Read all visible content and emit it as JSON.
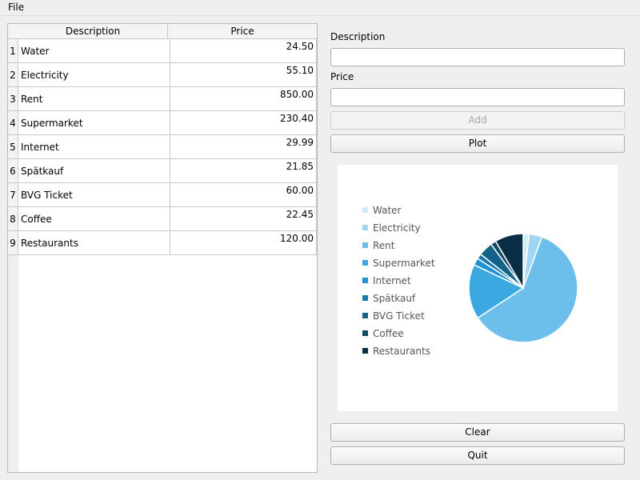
{
  "menu": {
    "file": "File"
  },
  "table": {
    "headers": [
      "Description",
      "Price"
    ],
    "rows": [
      {
        "n": "1",
        "description": "Water",
        "price": "24.50"
      },
      {
        "n": "2",
        "description": "Electricity",
        "price": "55.10"
      },
      {
        "n": "3",
        "description": "Rent",
        "price": "850.00"
      },
      {
        "n": "4",
        "description": "Supermarket",
        "price": "230.40"
      },
      {
        "n": "5",
        "description": "Internet",
        "price": "29.99"
      },
      {
        "n": "6",
        "description": "Spätkauf",
        "price": "21.85"
      },
      {
        "n": "7",
        "description": "BVG Ticket",
        "price": "60.00"
      },
      {
        "n": "8",
        "description": "Coffee",
        "price": "22.45"
      },
      {
        "n": "9",
        "description": "Restaurants",
        "price": "120.00"
      }
    ]
  },
  "form": {
    "description_label": "Description",
    "description_value": "",
    "price_label": "Price",
    "price_value": "",
    "add": "Add",
    "plot": "Plot",
    "clear": "Clear",
    "quit": "Quit"
  },
  "chart_data": {
    "type": "pie",
    "categories": [
      "Water",
      "Electricity",
      "Rent",
      "Supermarket",
      "Internet",
      "Spätkauf",
      "BVG Ticket",
      "Coffee",
      "Restaurants"
    ],
    "values": [
      24.5,
      55.1,
      850.0,
      230.4,
      29.99,
      21.85,
      60.0,
      22.45,
      120.0
    ],
    "colors": [
      "#d1ebf8",
      "#a1d6f2",
      "#6bbfea",
      "#3ba8e2",
      "#1f93d0",
      "#1b7aad",
      "#156289",
      "#0f4a67",
      "#0a2f44"
    ],
    "legend": "left",
    "start": "top-clockwise"
  }
}
